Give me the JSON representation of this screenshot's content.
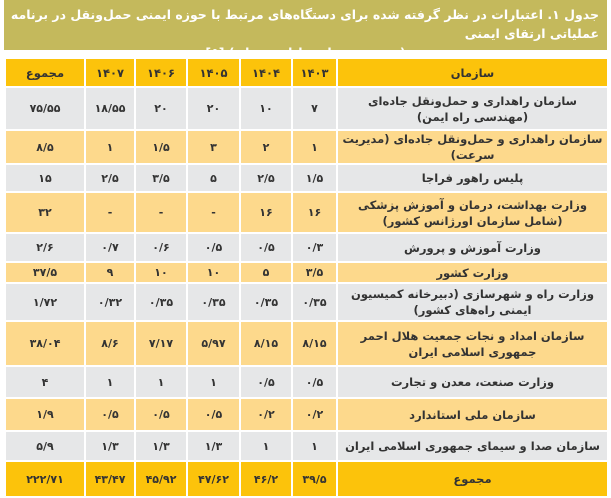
{
  "title": {
    "line1": "جدول ۱. اعتبارات در نظر گرفته شده برای دستگاه‌های مرتبط با حوزه ایمنی حمل‌ونقل در برنامه عملیاتی ارتقای ایمنی",
    "line2": "(برحسب هزار میلیارد تومان) [۵]"
  },
  "colors": {
    "title_bg": "#c4b95c",
    "header_bg": "#fcc30b",
    "row_gray": "#e6e7e8",
    "row_orange": "#fdd98c"
  },
  "headers": [
    "سازمان",
    "۱۴۰۳",
    "۱۴۰۴",
    "۱۴۰۵",
    "۱۴۰۶",
    "۱۴۰۷",
    "مجموع"
  ],
  "rows": [
    {
      "org": "سازمان راهداری و حمل‌ونقل جاده‌ای (مهندسی راه ایمن)",
      "values": [
        "۷",
        "۱۰",
        "۲۰",
        "۲۰",
        "۱۸/۵۵",
        "۷۵/۵۵"
      ]
    },
    {
      "org": "سازمان راهداری و حمل‌ونقل جاده‌ای (مدیریت سرعت)",
      "values": [
        "۱",
        "۲",
        "۳",
        "۱/۵",
        "۱",
        "۸/۵"
      ]
    },
    {
      "org": "پلیس راهور فراجا",
      "values": [
        "۱/۵",
        "۲/۵",
        "۵",
        "۳/۵",
        "۲/۵",
        "۱۵"
      ]
    },
    {
      "org": "وزارت بهداشت، درمان و آموزش پزشکی (شامل سازمان اورژانس کشور)",
      "values": [
        "۱۶",
        "۱۶",
        "-",
        "-",
        "-",
        "۳۲"
      ]
    },
    {
      "org": "وزارت آموزش و پرورش",
      "values": [
        "۰/۳",
        "۰/۵",
        "۰/۵",
        "۰/۶",
        "۰/۷",
        "۲/۶"
      ]
    },
    {
      "org": "وزارت کشور",
      "values": [
        "۳/۵",
        "۵",
        "۱۰",
        "۱۰",
        "۹",
        "۳۷/۵"
      ]
    },
    {
      "org": "وزارت راه و شهرسازی (دبیرخانه کمیسیون ایمنی راه‌های کشور)",
      "values": [
        "۰/۳۵",
        "۰/۳۵",
        "۰/۳۵",
        "۰/۳۵",
        "۰/۳۲",
        "۱/۷۲"
      ]
    },
    {
      "org": "سازمان امداد و نجات جمعیت هلال احمر جمهوری اسلامی ایران",
      "values": [
        "۸/۱۵",
        "۸/۱۵",
        "۵/۹۷",
        "۷/۱۷",
        "۸/۶",
        "۳۸/۰۴"
      ]
    },
    {
      "org": "وزارت صنعت، معدن و تجارت",
      "values": [
        "۰/۵",
        "۰/۵",
        "۱",
        "۱",
        "۱",
        "۴"
      ]
    },
    {
      "org": "سازمان ملی استاندارد",
      "values": [
        "۰/۲",
        "۰/۲",
        "۰/۵",
        "۰/۵",
        "۰/۵",
        "۱/۹"
      ]
    },
    {
      "org": "سازمان صدا و سیمای جمهوری اسلامی ایران",
      "values": [
        "۱",
        "۱",
        "۱/۳",
        "۱/۳",
        "۱/۳",
        "۵/۹"
      ]
    }
  ],
  "total": {
    "label": "مجموع",
    "values": [
      "۳۹/۵",
      "۴۶/۲",
      "۴۷/۶۲",
      "۴۵/۹۲",
      "۴۳/۴۷",
      "۲۲۲/۷۱"
    ]
  }
}
